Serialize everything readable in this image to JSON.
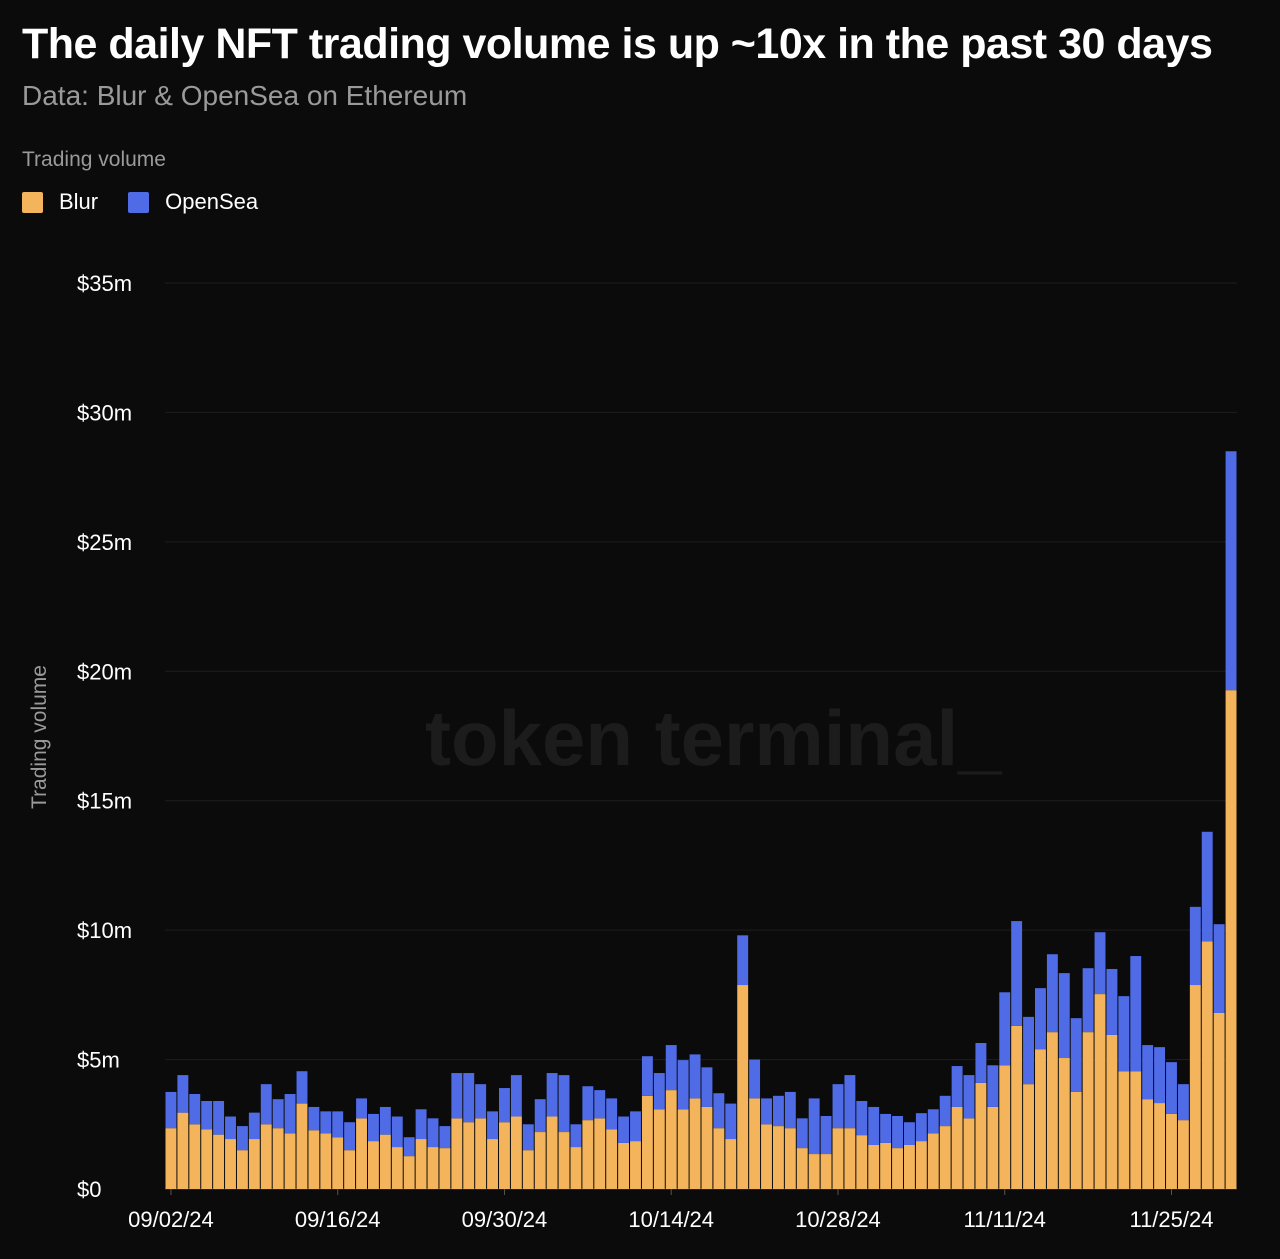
{
  "chart_data": {
    "type": "bar",
    "stacked": true,
    "title": "The daily NFT trading volume is up ~10x in the past 30 days",
    "subtitle": "Data: Blur & OpenSea on Ethereum",
    "legend_title": "Trading volume",
    "legend_position": "top-left",
    "ylabel": "Trading volume",
    "xlabel": "",
    "ylim": [
      0,
      35
    ],
    "y_unit": "$m",
    "grid": true,
    "yticks": [
      "$0",
      "$5m",
      "$10m",
      "$15m",
      "$20m",
      "$25m",
      "$30m",
      "$35m"
    ],
    "xticks": [
      "09/02/24",
      "09/16/24",
      "09/30/24",
      "10/14/24",
      "10/28/24",
      "11/11/24",
      "11/25/24"
    ],
    "watermark": "token terminal_",
    "x": [
      "09/02/24",
      "09/03/24",
      "09/04/24",
      "09/05/24",
      "09/06/24",
      "09/07/24",
      "09/08/24",
      "09/09/24",
      "09/10/24",
      "09/11/24",
      "09/12/24",
      "09/13/24",
      "09/14/24",
      "09/15/24",
      "09/16/24",
      "09/17/24",
      "09/18/24",
      "09/19/24",
      "09/20/24",
      "09/21/24",
      "09/22/24",
      "09/23/24",
      "09/24/24",
      "09/25/24",
      "09/26/24",
      "09/27/24",
      "09/28/24",
      "09/29/24",
      "09/30/24",
      "10/01/24",
      "10/02/24",
      "10/03/24",
      "10/04/24",
      "10/05/24",
      "10/06/24",
      "10/07/24",
      "10/08/24",
      "10/09/24",
      "10/10/24",
      "10/11/24",
      "10/12/24",
      "10/13/24",
      "10/14/24",
      "10/15/24",
      "10/16/24",
      "10/17/24",
      "10/18/24",
      "10/19/24",
      "10/20/24",
      "10/21/24",
      "10/22/24",
      "10/23/24",
      "10/24/24",
      "10/25/24",
      "10/26/24",
      "10/27/24",
      "10/28/24",
      "10/29/24",
      "10/30/24",
      "10/31/24",
      "11/01/24",
      "11/02/24",
      "11/03/24",
      "11/04/24",
      "11/05/24",
      "11/06/24",
      "11/07/24",
      "11/08/24",
      "11/09/24",
      "11/10/24",
      "11/11/24",
      "11/12/24",
      "11/13/24",
      "11/14/24",
      "11/15/24",
      "11/16/24",
      "11/17/24",
      "11/18/24",
      "11/19/24",
      "11/20/24",
      "11/21/24",
      "11/22/24",
      "11/23/24",
      "11/24/24",
      "11/25/24",
      "11/26/24",
      "11/27/24",
      "11/28/24",
      "11/29/24",
      "11/30/24"
    ],
    "series": [
      {
        "name": "Blur",
        "color": "#f3b45b",
        "values": [
          2.35,
          2.95,
          2.5,
          2.3,
          2.1,
          1.93,
          1.5,
          1.93,
          2.5,
          2.35,
          2.15,
          3.3,
          2.27,
          2.15,
          2.0,
          1.5,
          2.73,
          1.85,
          2.1,
          1.62,
          1.27,
          1.93,
          1.62,
          1.58,
          2.73,
          2.58,
          2.73,
          1.93,
          2.58,
          2.8,
          1.5,
          2.2,
          2.8,
          2.2,
          1.62,
          2.66,
          2.73,
          2.3,
          1.78,
          1.85,
          3.6,
          3.08,
          3.82,
          3.08,
          3.5,
          3.17,
          2.35,
          1.93,
          7.88,
          3.5,
          2.5,
          2.43,
          2.35,
          1.58,
          1.35,
          1.35,
          2.35,
          2.35,
          2.08,
          1.7,
          1.78,
          1.58,
          1.7,
          1.85,
          2.15,
          2.43,
          3.17,
          2.73,
          4.1,
          3.17,
          4.78,
          6.3,
          4.05,
          5.4,
          6.06,
          5.06,
          3.75,
          6.06,
          7.53,
          5.95,
          4.55,
          4.55,
          3.47,
          3.32,
          2.9,
          2.66,
          7.88,
          9.57,
          6.8,
          19.27
        ]
      },
      {
        "name": "OpenSea",
        "color": "#4f6be6",
        "values": [
          1.4,
          1.45,
          1.17,
          1.1,
          1.3,
          0.87,
          0.93,
          1.02,
          1.55,
          1.12,
          1.52,
          1.25,
          0.9,
          0.85,
          1.0,
          1.08,
          0.77,
          1.05,
          1.07,
          1.18,
          0.73,
          1.15,
          1.11,
          0.85,
          1.75,
          1.9,
          1.32,
          1.07,
          1.32,
          1.6,
          1.0,
          1.27,
          1.68,
          2.2,
          0.88,
          1.31,
          1.09,
          1.2,
          1.02,
          1.15,
          1.53,
          1.4,
          1.74,
          1.9,
          1.7,
          1.53,
          1.35,
          1.37,
          1.92,
          1.5,
          1.0,
          1.17,
          1.4,
          1.15,
          2.15,
          1.47,
          1.7,
          2.05,
          1.32,
          1.47,
          1.12,
          1.24,
          0.88,
          1.08,
          0.93,
          1.17,
          1.58,
          1.67,
          1.54,
          1.61,
          2.82,
          4.05,
          2.6,
          2.36,
          3.01,
          3.28,
          2.85,
          2.47,
          2.39,
          2.55,
          2.9,
          4.45,
          2.09,
          2.16,
          2.0,
          1.39,
          3.02,
          4.23,
          3.43,
          9.23
        ]
      }
    ]
  }
}
